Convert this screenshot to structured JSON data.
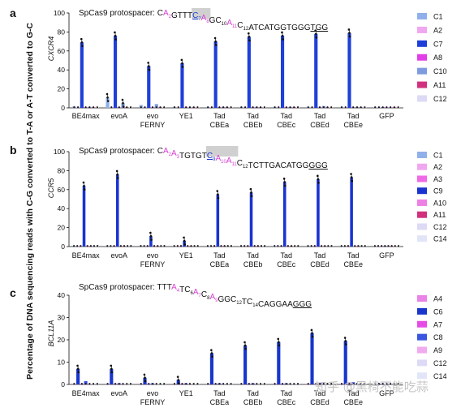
{
  "figure": {
    "ylabel": "Percentage of DNA sequencing reads with C-G converted to T-A or A-T converted to G-C",
    "categories": [
      "BE4max",
      "evoA",
      "evo\nFERNY",
      "YE1",
      "Tad\nCBEa",
      "Tad\nCBEb",
      "Tad\nCBEc",
      "Tad\nCBEd",
      "Tad\nCBEe",
      "GFP"
    ],
    "watermark": "知乎 @黑椅不能吃蒜"
  },
  "colors": {
    "C1": "#8fb0ea",
    "A2": "#f1a7ef",
    "C7": "#1e3fd8",
    "A8": "#e23ee8",
    "C10": "#7e9be0",
    "A11": "#d2307f",
    "C12": "#dcdaf5",
    "A3": "#f06ae8",
    "C9": "#1933d0",
    "A10": "#ee7fe5",
    "C14": "#e2e5f7",
    "A4": "#ea82e8",
    "C6": "#1836cc",
    "A7": "#e64be6",
    "C8": "#3a55e0",
    "A9": "#f0aaed",
    "accent_a": "#d940d4",
    "highlight": "#d0d0d0"
  },
  "chart_data": [
    {
      "panel": "a",
      "type": "bar",
      "gene": "CXCR4",
      "protospacer_prefix": "SpCas9 protospacer: ",
      "protospacer": [
        {
          "t": "C"
        },
        {
          "t": "A",
          "sub": "2",
          "c": "accent_a"
        },
        {
          "t": "GTTT"
        },
        {
          "t": "C",
          "sub": "7",
          "hl": true,
          "ul": true,
          "c": "C7"
        },
        {
          "t": "A",
          "sub": "8",
          "hl": true,
          "c": "accent_a"
        },
        {
          "t": "GC",
          "sub": "10"
        },
        {
          "t": "A",
          "sub": "11",
          "c": "accent_a"
        },
        {
          "t": "C",
          "sub": "12"
        },
        {
          "t": "ATCATGGTGGG"
        },
        {
          "t": "TGG",
          "ul": true
        }
      ],
      "ylim": [
        0,
        100
      ],
      "yticks": [
        0,
        20,
        40,
        60,
        80,
        100
      ],
      "legend": [
        "C1",
        "A2",
        "C7",
        "A8",
        "C10",
        "A11",
        "C12"
      ],
      "series": [
        {
          "name": "C1",
          "values": [
            1.5,
            11,
            3,
            1,
            1,
            1,
            1,
            1,
            1,
            0.5
          ]
        },
        {
          "name": "A2",
          "values": [
            0.5,
            0.5,
            0.5,
            0.3,
            0.5,
            0.5,
            0.5,
            0.5,
            0.5,
            0.3
          ]
        },
        {
          "name": "C7",
          "values": [
            69,
            76,
            44,
            47,
            70,
            75,
            76,
            78,
            79,
            0.5
          ]
        },
        {
          "name": "A8",
          "values": [
            0.5,
            0.5,
            0.5,
            0.3,
            0.5,
            0.5,
            0.5,
            0.5,
            0.5,
            0.3
          ]
        },
        {
          "name": "C10",
          "values": [
            1,
            5,
            4,
            0.5,
            1,
            1,
            1,
            2,
            1,
            0.5
          ]
        },
        {
          "name": "A11",
          "values": [
            0.5,
            0.5,
            0.5,
            0.3,
            0.5,
            0.5,
            0.5,
            0.5,
            0.5,
            0.3
          ]
        },
        {
          "name": "C12",
          "values": [
            0.5,
            0.5,
            0.5,
            0.3,
            0.5,
            0.5,
            0.5,
            0.5,
            0.5,
            0.3
          ]
        }
      ]
    },
    {
      "panel": "b",
      "type": "bar",
      "gene": "CCR5",
      "protospacer_prefix": "SpCas9 protospacer: ",
      "protospacer": [
        {
          "t": "C"
        },
        {
          "t": "A",
          "sub": "2",
          "c": "accent_a"
        },
        {
          "t": "A",
          "sub": "3",
          "c": "accent_a"
        },
        {
          "t": "TGTGT"
        },
        {
          "t": "C",
          "sub": "9",
          "hl": true,
          "ul": true,
          "c": "C9"
        },
        {
          "t": "A",
          "sub": "10",
          "hl": true,
          "c": "accent_a"
        },
        {
          "t": "A",
          "sub": "11",
          "hl": true,
          "c": "accent_a"
        },
        {
          "t": "C",
          "sub": "12"
        },
        {
          "t": "TCTTGACATGG"
        },
        {
          "t": "GGG",
          "ul": true
        }
      ],
      "ylim": [
        0,
        100
      ],
      "yticks": [
        0,
        20,
        40,
        60,
        80,
        100
      ],
      "legend": [
        "C1",
        "A2",
        "A3",
        "C9",
        "A10",
        "A11",
        "C12",
        "C14"
      ],
      "series": [
        {
          "name": "C1",
          "values": [
            1,
            0.5,
            1,
            0.5,
            0.5,
            0.5,
            0.5,
            0.5,
            0.5,
            0.3
          ]
        },
        {
          "name": "A2",
          "values": [
            0.3,
            0.3,
            0.3,
            0.3,
            0.3,
            0.3,
            0.3,
            0.3,
            0.3,
            0.3
          ]
        },
        {
          "name": "A3",
          "values": [
            0.3,
            0.3,
            0.3,
            0.3,
            0.3,
            0.3,
            0.3,
            0.3,
            0.3,
            0.3
          ]
        },
        {
          "name": "C9",
          "values": [
            64,
            76,
            11,
            6,
            55,
            57,
            68,
            71,
            73,
            0.5
          ]
        },
        {
          "name": "A10",
          "values": [
            0.3,
            0.3,
            0.3,
            0.3,
            0.3,
            0.3,
            0.3,
            0.3,
            0.3,
            0.3
          ]
        },
        {
          "name": "A11",
          "values": [
            0.3,
            0.3,
            0.3,
            0.3,
            0.3,
            0.3,
            0.3,
            0.3,
            0.3,
            0.3
          ]
        },
        {
          "name": "C12",
          "values": [
            0.3,
            0.3,
            0.3,
            0.3,
            0.3,
            0.3,
            0.3,
            0.3,
            0.3,
            0.3
          ]
        },
        {
          "name": "C14",
          "values": [
            1.5,
            1.5,
            1.5,
            0.5,
            1,
            1,
            1,
            1,
            1,
            0.5
          ]
        }
      ]
    },
    {
      "panel": "c",
      "type": "bar",
      "gene": "BCL11A",
      "protospacer_prefix": "SpCas9 protospacer: ",
      "protospacer": [
        {
          "t": "TTT"
        },
        {
          "t": "A",
          "sub": "4",
          "c": "accent_a"
        },
        {
          "t": "TC",
          "sub": "6"
        },
        {
          "t": "A",
          "sub": "7",
          "c": "accent_a"
        },
        {
          "t": "C",
          "sub": "8"
        },
        {
          "t": "A",
          "sub": "9",
          "c": "accent_a"
        },
        {
          "t": "GGC",
          "sub": "12"
        },
        {
          "t": "TC",
          "sub": "14"
        },
        {
          "t": "CAGGAA"
        },
        {
          "t": "GGG",
          "ul": true
        }
      ],
      "ylim": [
        0,
        40
      ],
      "yticks": [
        0,
        10,
        20,
        30,
        40
      ],
      "legend": [
        "A4",
        "C6",
        "A7",
        "C8",
        "A9",
        "C12",
        "C14"
      ],
      "series": [
        {
          "name": "A4",
          "values": [
            0.3,
            0.3,
            0.3,
            0.3,
            0.3,
            0.3,
            0.3,
            0.3,
            0.3,
            0.2
          ]
        },
        {
          "name": "C6",
          "values": [
            7,
            7,
            3,
            2,
            14,
            17.5,
            19,
            23,
            19.5,
            0.3
          ]
        },
        {
          "name": "A7",
          "values": [
            0.3,
            0.3,
            0.3,
            0.3,
            0.3,
            0.3,
            0.3,
            0.3,
            0.3,
            0.2
          ]
        },
        {
          "name": "C8",
          "values": [
            1.5,
            0.5,
            0.5,
            0.5,
            0.5,
            0.5,
            0.5,
            0.8,
            1,
            0.3
          ]
        },
        {
          "name": "A9",
          "values": [
            0.3,
            0.3,
            0.3,
            0.3,
            0.3,
            0.3,
            0.3,
            0.3,
            0.3,
            0.2
          ]
        },
        {
          "name": "C12",
          "values": [
            0.3,
            0.3,
            0.3,
            0.3,
            0.3,
            0.3,
            0.3,
            0.3,
            0.3,
            0.2
          ]
        },
        {
          "name": "C14",
          "values": [
            0.5,
            0.5,
            0.5,
            0.3,
            0.5,
            0.5,
            0.5,
            0.5,
            0.5,
            0.2
          ]
        }
      ]
    }
  ]
}
